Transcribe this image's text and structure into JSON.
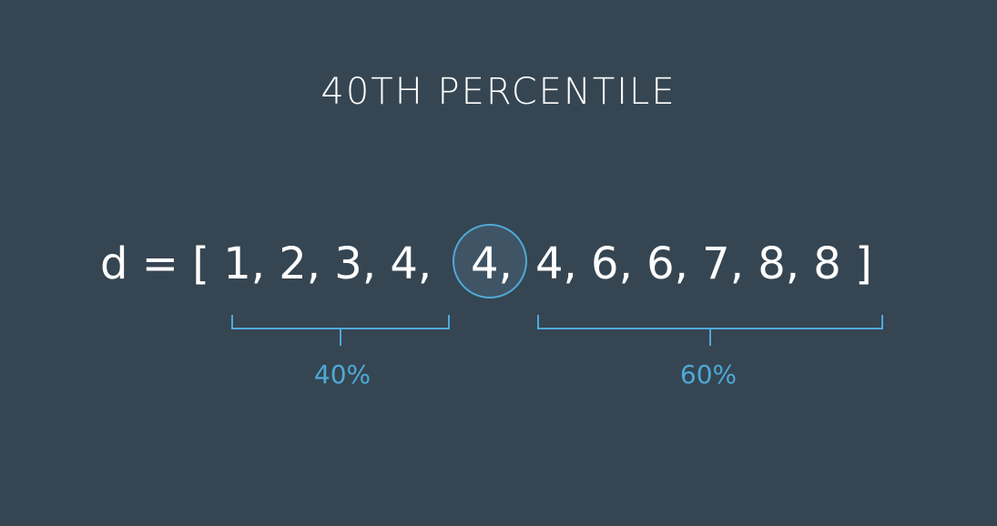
{
  "title": "40TH PERCENTILE",
  "expression": {
    "prefix": "d = [ 1, 2, 3, 4,",
    "highlight": "4,",
    "suffix": "4, 6, 6, 7, 8, 8 ]"
  },
  "left_bracket": {
    "label": "40%"
  },
  "right_bracket": {
    "label": "60%"
  },
  "colors": {
    "background": "#354552",
    "accent": "#4fa9d6",
    "text": "#ffffff"
  }
}
